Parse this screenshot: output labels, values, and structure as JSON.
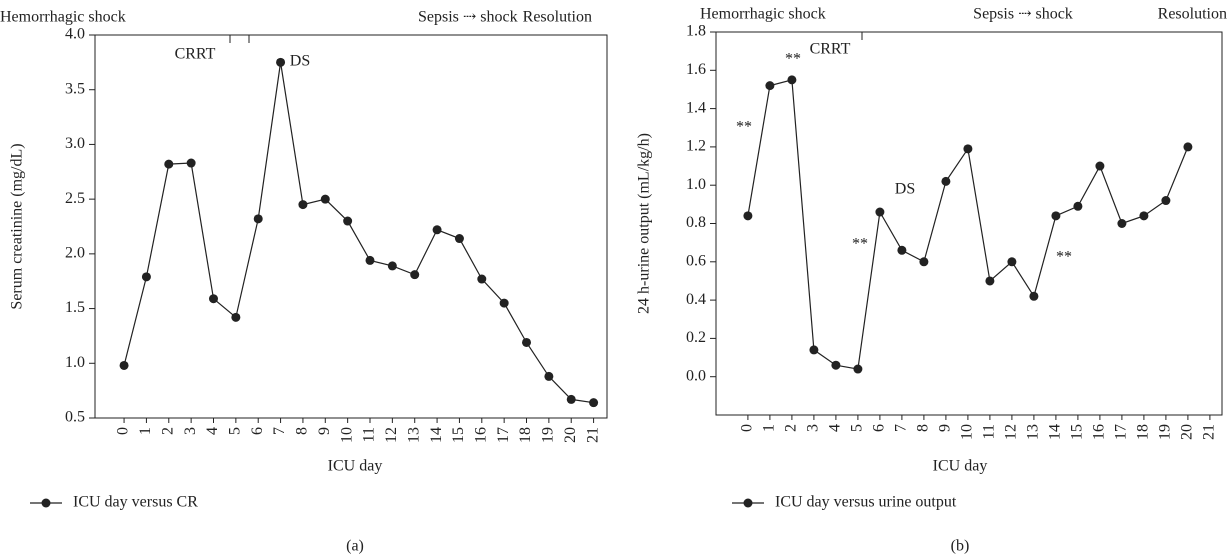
{
  "chart_data": [
    {
      "type": "line",
      "x_label": "ICU day",
      "y_label": "Serum creatinine (mg/dL)",
      "panel_label": "(a)",
      "annotations": [
        "Hemorrhagic shock",
        "CRRT",
        "DS",
        "Sepsis ⇢ shock",
        "Resolution"
      ],
      "x": [
        0,
        1,
        2,
        3,
        4,
        5,
        6,
        7,
        8,
        9,
        10,
        11,
        12,
        13,
        14,
        15,
        16,
        17,
        18,
        19,
        20,
        21
      ],
      "xlim": [
        -1.3,
        21.6
      ],
      "xticks": [
        0,
        1,
        2,
        3,
        4,
        5,
        6,
        7,
        8,
        9,
        10,
        11,
        12,
        13,
        14,
        15,
        16,
        17,
        18,
        19,
        20,
        21
      ],
      "ylim": [
        0.5,
        4.0
      ],
      "yticks": [
        0.5,
        {
          "value": 1,
          "label": "1.0"
        },
        1.5,
        {
          "value": 2,
          "label": "2.0"
        },
        2.5,
        {
          "value": 3,
          "label": "3.0"
        },
        3.5,
        {
          "value": 4,
          "label": "4.0"
        }
      ],
      "series": [
        {
          "name": "ICU day versus CR",
          "color": "#222222",
          "values": [
            0.98,
            1.79,
            2.82,
            2.83,
            1.59,
            1.42,
            2.32,
            3.75,
            2.45,
            2.5,
            2.3,
            1.94,
            1.89,
            1.81,
            2.22,
            2.14,
            1.77,
            1.55,
            1.19,
            0.88,
            0.67,
            0.64
          ]
        }
      ]
    },
    {
      "type": "line",
      "x_label": "ICU day",
      "y_label": "24 h-urine output (mL/kg/h)",
      "panel_label": "(b)",
      "annotations": [
        "Hemorrhagic shock",
        "CRRT",
        "DS",
        "Sepsis ⇢ shock",
        "Resolution",
        "**",
        "**",
        "**",
        "**"
      ],
      "x": [
        0,
        1,
        2,
        3,
        4,
        5,
        6,
        7,
        8,
        9,
        10,
        11,
        12,
        13,
        14,
        15,
        16,
        17,
        18,
        19,
        20,
        21
      ],
      "xlim": [
        -1.45,
        21.55
      ],
      "xticks": [
        0,
        1,
        2,
        3,
        4,
        5,
        6,
        7,
        8,
        9,
        10,
        11,
        12,
        13,
        14,
        15,
        16,
        17,
        18,
        19,
        20,
        21
      ],
      "ylim": [
        -0.2,
        1.8
      ],
      "yticks": [
        {
          "value": 0,
          "label": "0.0"
        },
        0.2,
        0.4,
        0.6,
        0.8,
        {
          "value": 1,
          "label": "1.0"
        },
        1.2,
        1.4,
        1.6,
        1.8
      ],
      "series": [
        {
          "name": "ICU day versus urine output",
          "color": "#222222",
          "values": [
            0.84,
            1.52,
            1.55,
            0.14,
            0.06,
            0.04,
            0.86,
            0.66,
            0.6,
            1.02,
            1.19,
            0.5,
            0.6,
            0.42,
            0.84,
            0.89,
            1.1,
            0.8,
            0.84,
            0.92,
            1.2,
            null
          ]
        }
      ]
    }
  ]
}
